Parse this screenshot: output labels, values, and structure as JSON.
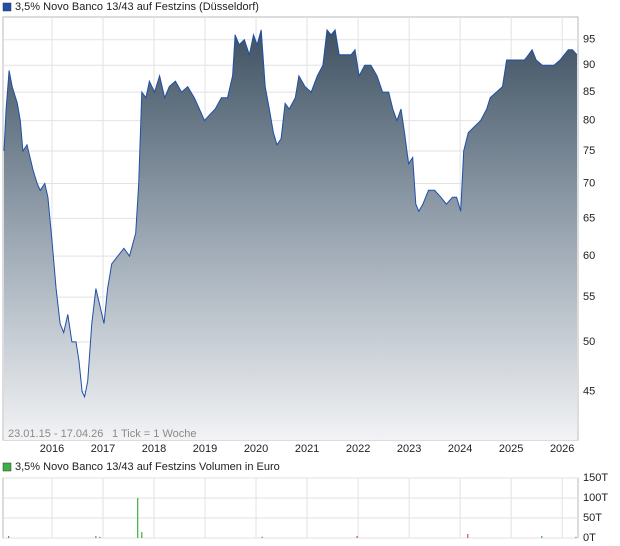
{
  "chart_data": [
    {
      "type": "area",
      "series": [
        {
          "name": "3,5% Novo Banco 13/43 auf Festzins (Düsseldorf)",
          "color": "#1f4fa8",
          "values": [
            75,
            82,
            89,
            86,
            83,
            80,
            75,
            76,
            72,
            70,
            69,
            70,
            68,
            62,
            56,
            52,
            51,
            53,
            50,
            50,
            48,
            45,
            44.5,
            46,
            52,
            56,
            54,
            52,
            56,
            59,
            60,
            61,
            60,
            63,
            70,
            85,
            84,
            87,
            85,
            88,
            84,
            86,
            87,
            85,
            86,
            84,
            82,
            80,
            81,
            82,
            84,
            84,
            88,
            96,
            94,
            95,
            92,
            96,
            94,
            97,
            86,
            82,
            78,
            76,
            77,
            83,
            82,
            84,
            88,
            86,
            85,
            88,
            90,
            97,
            96,
            97,
            92,
            92,
            92,
            93,
            88,
            90,
            90,
            88,
            85,
            85,
            82,
            80,
            82,
            78,
            73,
            74,
            67,
            66,
            67,
            69,
            69,
            68,
            67,
            68,
            68,
            66,
            75,
            78,
            79,
            80,
            82,
            84,
            85,
            86,
            91,
            91,
            91,
            91,
            92,
            93,
            91,
            90,
            90,
            90,
            91,
            92,
            93,
            93,
            92
          ]
        }
      ],
      "x": [
        2015.06,
        2015.1,
        2015.16,
        2015.22,
        2015.32,
        2015.38,
        2015.43,
        2015.51,
        2015.63,
        2015.71,
        2015.77,
        2015.86,
        2015.92,
        2016.0,
        2016.08,
        2016.16,
        2016.23,
        2016.31,
        2016.39,
        2016.47,
        2016.53,
        2016.59,
        2016.64,
        2016.7,
        2016.78,
        2016.86,
        2016.94,
        2017.02,
        2017.09,
        2017.17,
        2017.29,
        2017.41,
        2017.52,
        2017.64,
        2017.7,
        2017.76,
        2017.84,
        2017.91,
        2018.01,
        2018.11,
        2018.21,
        2018.3,
        2018.42,
        2018.54,
        2018.66,
        2018.79,
        2018.89,
        2018.99,
        2019.09,
        2019.2,
        2019.32,
        2019.44,
        2019.54,
        2019.59,
        2019.67,
        2019.77,
        2019.87,
        2019.95,
        2020.02,
        2020.1,
        2020.18,
        2020.26,
        2020.34,
        2020.41,
        2020.49,
        2020.57,
        2020.65,
        2020.77,
        2020.84,
        2020.96,
        2021.08,
        2021.2,
        2021.31,
        2021.39,
        2021.47,
        2021.55,
        2021.63,
        2021.74,
        2021.86,
        2021.94,
        2022.02,
        2022.13,
        2022.25,
        2022.37,
        2022.48,
        2022.6,
        2022.68,
        2022.76,
        2022.84,
        2022.91,
        2022.99,
        2023.07,
        2023.13,
        2023.19,
        2023.27,
        2023.38,
        2023.5,
        2023.62,
        2023.73,
        2023.85,
        2023.93,
        2024.01,
        2024.07,
        2024.16,
        2024.28,
        2024.4,
        2024.52,
        2024.59,
        2024.71,
        2024.83,
        2024.91,
        2025.02,
        2025.14,
        2025.26,
        2025.34,
        2025.41,
        2025.49,
        2025.61,
        2025.73,
        2025.84,
        2025.96,
        2026.04,
        2026.12,
        2026.2,
        2026.29
      ],
      "xlim": [
        2015.04,
        2026.31
      ],
      "xticks": [
        2016,
        2017,
        2018,
        2019,
        2020,
        2021,
        2022,
        2023,
        2024,
        2025,
        2026
      ],
      "ylim": [
        40.6,
        99.7
      ],
      "yticks": [
        45,
        50,
        55,
        60,
        65,
        70,
        75,
        80,
        85,
        90,
        95
      ],
      "log_scale": true,
      "grid": true,
      "annotations": [
        "23.01.15 - 17.04.26",
        "1 Tick = 1 Woche"
      ]
    },
    {
      "type": "bar",
      "series": [
        {
          "name": "3,5% Novo Banco 13/43 auf Festzins Volumen in Euro",
          "color": "#3cb043",
          "values": [
            5000,
            5000,
            3000,
            100000,
            15000,
            3000,
            5000,
            10000,
            5000,
            3000
          ]
        }
      ],
      "bar_colors": [
        "#3cb043",
        "#3cb043",
        "#e05050",
        "#3cb043",
        "#3cb043",
        "#e05050",
        "#e05050",
        "#e05050",
        "#3cb043",
        "#3cb043"
      ],
      "x": [
        2015.15,
        2016.86,
        2016.94,
        2017.68,
        2017.76,
        2020.12,
        2021.98,
        2024.15,
        2025.6,
        2026.27
      ],
      "xlim": [
        2015.04,
        2026.31
      ],
      "ylim": [
        0,
        150000
      ],
      "yticks": [
        {
          "value": 0,
          "label": "0T"
        },
        {
          "value": 50000,
          "label": "50T"
        },
        {
          "value": 100000,
          "label": "100T"
        },
        {
          "value": 150000,
          "label": "150T"
        }
      ],
      "grid": true
    }
  ]
}
